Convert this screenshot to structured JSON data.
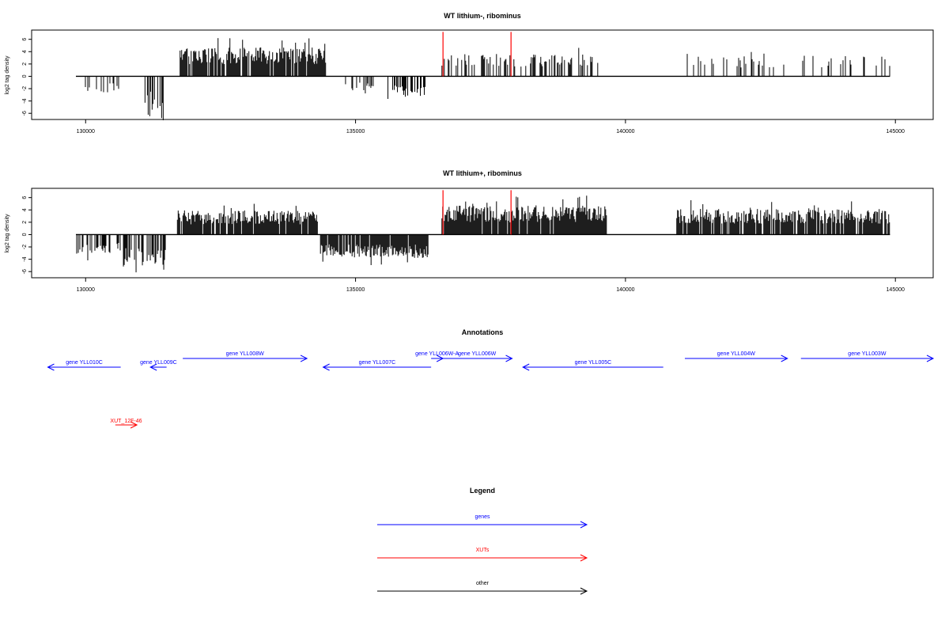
{
  "chart_data": [
    {
      "type": "bar",
      "title": "WT lithium-, ribominus",
      "ylabel": "log2 tag density",
      "xlabel": "",
      "xlim": [
        129000,
        145700
      ],
      "ylim": [
        -7,
        7.5
      ],
      "x_ticks": [
        130000,
        135000,
        140000,
        145000
      ],
      "y_ticks": [
        -6,
        -4,
        -2,
        0,
        2,
        4,
        6
      ],
      "grid": false,
      "segments": [
        {
          "x0": 129820,
          "x1": 130700,
          "amp": -2.0,
          "density": 0.15,
          "sign": -1
        },
        {
          "x0": 131100,
          "x1": 131500,
          "amp": -4.2,
          "density": 0.5,
          "sign": -1
        },
        {
          "x0": 131750,
          "x1": 134450,
          "amp": 3.6,
          "density": 0.9,
          "sign": 1
        },
        {
          "x0": 134800,
          "x1": 135350,
          "amp": -1.8,
          "density": 0.35,
          "sign": -1
        },
        {
          "x0": 135600,
          "x1": 136300,
          "amp": -2.5,
          "density": 0.5,
          "sign": -1
        },
        {
          "x0": 136600,
          "x1": 139600,
          "amp": 2.8,
          "density": 0.3,
          "sign": 1
        },
        {
          "x0": 141100,
          "x1": 144900,
          "amp": 2.6,
          "density": 0.15,
          "sign": 1
        }
      ],
      "highlights": [
        {
          "x": 136620,
          "value": 7.2,
          "color": "#ff0000"
        },
        {
          "x": 137880,
          "value": 7.2,
          "color": "#ff0000"
        }
      ]
    },
    {
      "type": "bar",
      "title": "WT lithium+, ribominus",
      "ylabel": "log2 tag density",
      "xlabel": "",
      "xlim": [
        129000,
        145700
      ],
      "ylim": [
        -7,
        7.5
      ],
      "x_ticks": [
        130000,
        135000,
        140000,
        145000
      ],
      "y_ticks": [
        -6,
        -4,
        -2,
        0,
        2,
        4,
        6
      ],
      "grid": false,
      "segments": [
        {
          "x0": 129820,
          "x1": 130650,
          "amp": -2.4,
          "density": 0.6,
          "sign": -1
        },
        {
          "x0": 130700,
          "x1": 131500,
          "amp": -4.0,
          "density": 0.6,
          "sign": -1
        },
        {
          "x0": 131700,
          "x1": 134300,
          "amp": 3.0,
          "density": 0.9,
          "sign": 1
        },
        {
          "x0": 134350,
          "x1": 136350,
          "amp": -2.9,
          "density": 0.9,
          "sign": -1
        },
        {
          "x0": 136600,
          "x1": 139650,
          "amp": 3.6,
          "density": 0.95,
          "sign": 1
        },
        {
          "x0": 140950,
          "x1": 144900,
          "amp": 3.2,
          "density": 0.85,
          "sign": 1
        }
      ],
      "highlights": [
        {
          "x": 136620,
          "value": 7.2,
          "color": "#ff0000"
        },
        {
          "x": 137880,
          "value": 7.2,
          "color": "#ff0000"
        }
      ]
    }
  ],
  "annotations": {
    "title": "Annotations",
    "genes": [
      {
        "label": "gene YLL010C",
        "x0": 129300,
        "x1": 130650,
        "row": 2,
        "dir": -1
      },
      {
        "label": "gene YLL009C",
        "x0": 131200,
        "x1": 131500,
        "row": 2,
        "dir": -1
      },
      {
        "label": "gene YLL008W",
        "x0": 131800,
        "x1": 134100,
        "row": 1,
        "dir": 1
      },
      {
        "label": "gene YLL007C",
        "x0": 134400,
        "x1": 136400,
        "row": 2,
        "dir": -1
      },
      {
        "label": "gene YLL006W-A",
        "x0": 136400,
        "x1": 136620,
        "row": 1,
        "dir": 1
      },
      {
        "label": "gene YLL006W",
        "x0": 136600,
        "x1": 137900,
        "row": 1,
        "dir": 1
      },
      {
        "label": "gene YLL005C",
        "x0": 138100,
        "x1": 140700,
        "row": 2,
        "dir": -1
      },
      {
        "label": "gene YLL004W",
        "x0": 141100,
        "x1": 143000,
        "row": 1,
        "dir": 1
      },
      {
        "label": "gene YLL003W",
        "x0": 143250,
        "x1": 145700,
        "row": 1,
        "dir": 1
      }
    ],
    "xuts": [
      {
        "label": "XUT_12F-46",
        "x0": 130550,
        "x1": 130950,
        "row": 3,
        "dir": 1
      }
    ]
  },
  "legend": {
    "title": "Legend",
    "items": [
      {
        "label": "genes",
        "color": "#0000ff"
      },
      {
        "label": "XUTs",
        "color": "#ff0000"
      },
      {
        "label": "other",
        "color": "#000000"
      }
    ]
  },
  "colors": {
    "gene": "#0000ff",
    "xut": "#ff0000",
    "bar": "#000000",
    "frame": "#000000"
  }
}
